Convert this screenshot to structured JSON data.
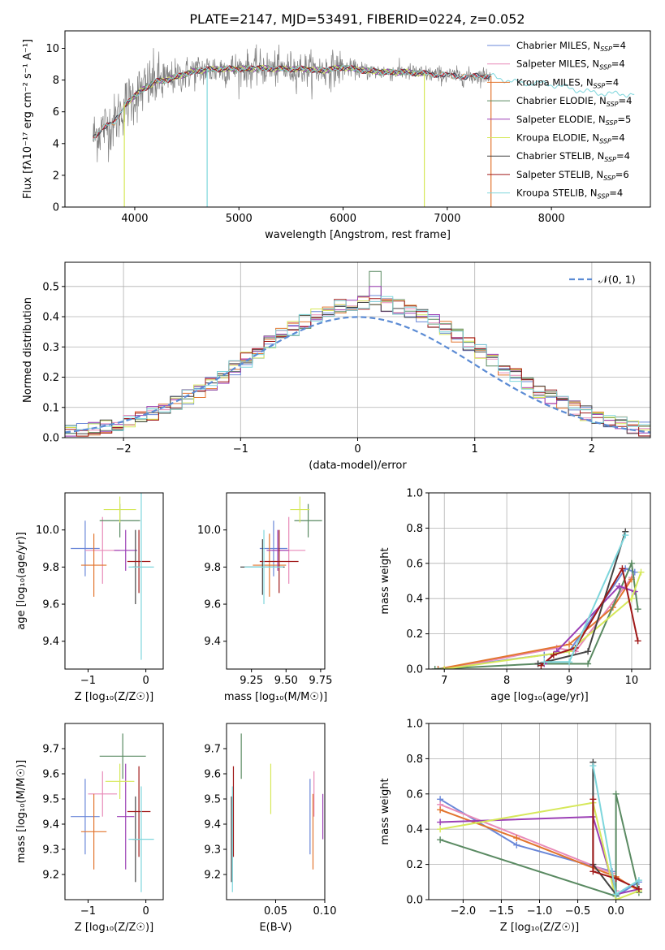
{
  "figure": {
    "title": "PLATE=2147, MJD=53491, FIBERID=0224, z=0.052"
  },
  "chart_data": [
    {
      "id": "spectrum",
      "type": "line",
      "xlabel": "wavelength [Angstrom, rest frame]",
      "ylabel": "Flux [fλ10⁻¹⁷ erg cm⁻² s⁻¹ A⁻¹]",
      "xlim": [
        3330,
        8950
      ],
      "ylim": [
        0,
        11.1
      ],
      "xticks": [
        4000,
        5000,
        6000,
        7000,
        8000
      ],
      "yticks": [
        0,
        2,
        4,
        6,
        8,
        10
      ],
      "grid": false,
      "legend_position": "top-right",
      "legend": [
        {
          "label": "Chabrier MILES, N",
          "sub": "SSP",
          "suffix": "=4",
          "color": "#6a87d8"
        },
        {
          "label": "Salpeter MILES, N",
          "sub": "SSP",
          "suffix": "=4",
          "color": "#e88ab8"
        },
        {
          "label": "Kroupa MILES, N",
          "sub": "SSP",
          "suffix": "=4",
          "color": "#e2752e"
        },
        {
          "label": "Chabrier ELODIE, N",
          "sub": "SSP",
          "suffix": "=4",
          "color": "#5a8a62"
        },
        {
          "label": "Salpeter ELODIE, N",
          "sub": "SSP",
          "suffix": "=5",
          "color": "#9b3fb5"
        },
        {
          "label": "Kroupa ELODIE, N",
          "sub": "SSP",
          "suffix": "=4",
          "color": "#d6e85a"
        },
        {
          "label": "Chabrier STELIB, N",
          "sub": "SSP",
          "suffix": "=4",
          "color": "#444444"
        },
        {
          "label": "Salpeter STELIB, N",
          "sub": "SSP",
          "suffix": "=6",
          "color": "#a01818"
        },
        {
          "label": "Kroupa STELIB, N",
          "sub": "SSP",
          "suffix": "=4",
          "color": "#7ed6dc"
        }
      ],
      "observed_color": "#808080",
      "continuum": {
        "x": [
          3600,
          3700,
          3800,
          3900,
          4000,
          4100,
          4200,
          4300,
          4400,
          4500,
          4600,
          4800,
          5000,
          5200,
          5400,
          5600,
          5800,
          6000,
          6200,
          6400,
          6600,
          6800,
          7000,
          7200,
          7400,
          7500,
          7700,
          7900,
          8100,
          8300,
          8500,
          8800
        ],
        "y": [
          4.4,
          5.0,
          5.3,
          6.4,
          7.0,
          7.5,
          7.9,
          8.0,
          8.2,
          8.4,
          8.6,
          8.7,
          8.7,
          8.75,
          8.7,
          8.7,
          8.6,
          8.8,
          8.6,
          8.5,
          8.5,
          8.4,
          8.3,
          8.2,
          8.3,
          8.1,
          7.8,
          7.8,
          7.6,
          7.3,
          7.15,
          7.1
        ]
      },
      "model_ranges": [
        {
          "color": "#6a87d8",
          "x0": 3600,
          "x1": 7420
        },
        {
          "color": "#e88ab8",
          "x0": 3600,
          "x1": 7420
        },
        {
          "color": "#e2752e",
          "x0": 3600,
          "x1": 7420
        },
        {
          "color": "#5a8a62",
          "x0": 3900,
          "x1": 6780
        },
        {
          "color": "#9b3fb5",
          "x0": 3900,
          "x1": 6780
        },
        {
          "color": "#d6e85a",
          "x0": 3900,
          "x1": 6780
        },
        {
          "color": "#444444",
          "x0": 3600,
          "x1": 7420
        },
        {
          "color": "#a01818",
          "x0": 3600,
          "x1": 7420
        },
        {
          "color": "#7ed6dc",
          "x0": 3600,
          "x1": 8800
        }
      ],
      "drop_lines": [
        {
          "x": 3900,
          "color": "#d6e85a"
        },
        {
          "x": 4695,
          "color": "#7ed6dc"
        },
        {
          "x": 6780,
          "color": "#d6e85a"
        },
        {
          "x": 7420,
          "color": "#e2752e"
        }
      ]
    },
    {
      "id": "residuals",
      "type": "step",
      "xlabel": "(data-model)/error",
      "ylabel": "Normed distribution",
      "xlim": [
        -2.5,
        2.5
      ],
      "ylim": [
        0,
        0.58
      ],
      "xticks": [
        -2,
        -1,
        0,
        1,
        2
      ],
      "yticks": [
        0.0,
        0.1,
        0.2,
        0.3,
        0.4,
        0.5
      ],
      "grid": true,
      "legend_position": "top-right",
      "legend": [
        {
          "label": "𝒩(0, 1)",
          "color": "#5b8bd4",
          "style": "dashed"
        }
      ],
      "bin_width": 0.1,
      "series_colors": [
        "#6a87d8",
        "#e88ab8",
        "#e2752e",
        "#5a8a62",
        "#9b3fb5",
        "#d6e85a",
        "#444444",
        "#a01818",
        "#7ed6dc"
      ],
      "peak_values": [
        0.47,
        0.45,
        0.44,
        0.55,
        0.5,
        0.44,
        0.44,
        0.46,
        0.45
      ]
    },
    {
      "id": "age_vs_Z",
      "type": "errorbar",
      "xlabel": "Z [log₁₀(Z/Z☉)]",
      "ylabel": "age  [log₁₀(age/yr)]",
      "xlim": [
        -1.4,
        0.3
      ],
      "ylim": [
        9.25,
        10.2
      ],
      "xticks": [
        -1,
        0
      ],
      "yticks": [
        9.4,
        9.6,
        9.8,
        10.0
      ],
      "grid": false,
      "points": [
        {
          "color": "#6a87d8",
          "x": -1.05,
          "xerr": 0.25,
          "y": 9.9,
          "yerr": 0.15
        },
        {
          "color": "#e88ab8",
          "x": -0.75,
          "xerr": 0.3,
          "y": 9.89,
          "yerr": 0.18
        },
        {
          "color": "#e2752e",
          "x": -0.9,
          "xerr": 0.22,
          "y": 9.81,
          "yerr": 0.17
        },
        {
          "color": "#5a8a62",
          "x": -0.45,
          "xerr": 0.35,
          "y": 10.05,
          "yerr": 0.09
        },
        {
          "color": "#9b3fb5",
          "x": -0.35,
          "xerr": 0.2,
          "y": 9.89,
          "yerr": 0.11
        },
        {
          "color": "#d6e85a",
          "x": -0.45,
          "xerr": 0.28,
          "y": 10.11,
          "yerr": 0.07
        },
        {
          "color": "#444444",
          "x": -0.18,
          "xerr": 0.05,
          "y": 9.8,
          "yerr": 0.2
        },
        {
          "color": "#a01818",
          "x": -0.12,
          "xerr": 0.2,
          "y": 9.83,
          "yerr": 0.17
        },
        {
          "color": "#7ed6dc",
          "x": -0.08,
          "xerr": 0.22,
          "y": 9.8,
          "yerr": 0.5
        }
      ]
    },
    {
      "id": "age_vs_mass",
      "type": "errorbar",
      "xlabel": "mass [log₁₀(M/M☉)]",
      "ylabel": "",
      "xlim": [
        9.07,
        9.78
      ],
      "ylim": [
        9.25,
        10.2
      ],
      "xticks": [
        9.25,
        9.5,
        9.75
      ],
      "yticks": [
        9.4,
        9.6,
        9.8,
        10.0
      ],
      "grid": false,
      "points": [
        {
          "color": "#6a87d8",
          "x": 9.41,
          "xerr": 0.1,
          "y": 9.9,
          "yerr": 0.15
        },
        {
          "color": "#e88ab8",
          "x": 9.52,
          "xerr": 0.12,
          "y": 9.89,
          "yerr": 0.18
        },
        {
          "color": "#e2752e",
          "x": 9.38,
          "xerr": 0.12,
          "y": 9.81,
          "yerr": 0.17
        },
        {
          "color": "#5a8a62",
          "x": 9.66,
          "xerr": 0.1,
          "y": 10.05,
          "yerr": 0.09
        },
        {
          "color": "#9b3fb5",
          "x": 9.44,
          "xerr": 0.08,
          "y": 9.89,
          "yerr": 0.11
        },
        {
          "color": "#d6e85a",
          "x": 9.6,
          "xerr": 0.07,
          "y": 10.11,
          "yerr": 0.07
        },
        {
          "color": "#444444",
          "x": 9.33,
          "xerr": 0.16,
          "y": 9.8,
          "yerr": 0.15
        },
        {
          "color": "#a01818",
          "x": 9.45,
          "xerr": 0.14,
          "y": 9.83,
          "yerr": 0.17
        },
        {
          "color": "#7ed6dc",
          "x": 9.34,
          "xerr": 0.14,
          "y": 9.8,
          "yerr": 0.2
        }
      ]
    },
    {
      "id": "mass_weight_vs_age",
      "type": "line",
      "xlabel": "age  [log₁₀(age/yr)]",
      "ylabel": "mass weight",
      "xlim": [
        6.75,
        10.3
      ],
      "ylim": [
        0,
        1.0
      ],
      "xticks": [
        7,
        8,
        9,
        10
      ],
      "yticks": [
        0.0,
        0.2,
        0.4,
        0.6,
        0.8,
        1.0
      ],
      "grid": true,
      "series": [
        {
          "color": "#6a87d8",
          "x": [
            6.9,
            8.6,
            9.0,
            9.9,
            10.05
          ],
          "y": [
            0.0,
            0.08,
            0.1,
            0.57,
            0.55
          ]
        },
        {
          "color": "#e88ab8",
          "x": [
            7.0,
            8.8,
            9.1,
            10.0
          ],
          "y": [
            0.0,
            0.12,
            0.1,
            0.52
          ]
        },
        {
          "color": "#e2752e",
          "x": [
            6.9,
            9.0,
            9.7,
            10.0
          ],
          "y": [
            0.0,
            0.14,
            0.35,
            0.51
          ]
        },
        {
          "color": "#5a8a62",
          "x": [
            6.85,
            8.5,
            9.3,
            10.0,
            10.1
          ],
          "y": [
            0.0,
            0.03,
            0.03,
            0.6,
            0.34
          ]
        },
        {
          "color": "#9b3fb5",
          "x": [
            8.6,
            8.8,
            9.8,
            10.05
          ],
          "y": [
            0.03,
            0.1,
            0.47,
            0.44
          ]
        },
        {
          "color": "#d6e85a",
          "x": [
            7.0,
            9.0,
            10.0,
            10.15
          ],
          "y": [
            0.0,
            0.1,
            0.4,
            0.55
          ]
        },
        {
          "color": "#444444",
          "x": [
            8.5,
            9.3,
            9.9
          ],
          "y": [
            0.03,
            0.1,
            0.78
          ]
        },
        {
          "color": "#a01818",
          "x": [
            8.55,
            8.75,
            9.1,
            9.85,
            10.1
          ],
          "y": [
            0.02,
            0.08,
            0.12,
            0.57,
            0.16
          ]
        },
        {
          "color": "#7ed6dc",
          "x": [
            8.6,
            9.0,
            9.9
          ],
          "y": [
            0.04,
            0.04,
            0.76
          ]
        }
      ]
    },
    {
      "id": "mass_vs_Z",
      "type": "errorbar",
      "xlabel": "Z [log₁₀(Z/Z☉)]",
      "ylabel": "mass [log₁₀(M/M☉)]",
      "xlim": [
        -1.4,
        0.3
      ],
      "ylim": [
        9.1,
        9.8
      ],
      "xticks": [
        -1,
        0
      ],
      "yticks": [
        9.2,
        9.3,
        9.4,
        9.5,
        9.6,
        9.7
      ],
      "grid": false,
      "points": [
        {
          "color": "#6a87d8",
          "x": -1.05,
          "xerr": 0.25,
          "y": 9.43,
          "yerr": 0.15
        },
        {
          "color": "#e88ab8",
          "x": -0.75,
          "xerr": 0.25,
          "y": 9.52,
          "yerr": 0.09
        },
        {
          "color": "#e2752e",
          "x": -0.9,
          "xerr": 0.22,
          "y": 9.37,
          "yerr": 0.15
        },
        {
          "color": "#5a8a62",
          "x": -0.4,
          "xerr": 0.4,
          "y": 9.67,
          "yerr": 0.09
        },
        {
          "color": "#9b3fb5",
          "x": -0.35,
          "xerr": 0.15,
          "y": 9.43,
          "yerr": 0.21
        },
        {
          "color": "#d6e85a",
          "x": -0.45,
          "xerr": 0.25,
          "y": 9.57,
          "yerr": 0.07
        },
        {
          "color": "#444444",
          "x": -0.18,
          "xerr": 0.05,
          "y": 9.34,
          "yerr": 0.17
        },
        {
          "color": "#a01818",
          "x": -0.12,
          "xerr": 0.2,
          "y": 9.45,
          "yerr": 0.18
        },
        {
          "color": "#7ed6dc",
          "x": -0.08,
          "xerr": 0.22,
          "y": 9.34,
          "yerr": 0.21
        }
      ]
    },
    {
      "id": "mass_vs_EBV",
      "type": "errorbar",
      "xlabel": "E(B-V)",
      "ylabel": "",
      "xlim": [
        0.0,
        0.1
      ],
      "ylim": [
        9.1,
        9.8
      ],
      "xticks": [
        0.05,
        0.1
      ],
      "yticks": [
        9.2,
        9.3,
        9.4,
        9.5,
        9.6,
        9.7
      ],
      "grid": false,
      "points": [
        {
          "color": "#6a87d8",
          "x": 0.085,
          "xerr": 0.0,
          "y": 9.43,
          "yerr": 0.15
        },
        {
          "color": "#e88ab8",
          "x": 0.089,
          "xerr": 0.0,
          "y": 9.52,
          "yerr": 0.09
        },
        {
          "color": "#e2752e",
          "x": 0.088,
          "xerr": 0.0,
          "y": 9.37,
          "yerr": 0.15
        },
        {
          "color": "#5a8a62",
          "x": 0.015,
          "xerr": 0.0,
          "y": 9.67,
          "yerr": 0.09
        },
        {
          "color": "#9b3fb5",
          "x": 0.098,
          "xerr": 0.0,
          "y": 9.43,
          "yerr": 0.09
        },
        {
          "color": "#d6e85a",
          "x": 0.045,
          "xerr": 0.0,
          "y": 9.54,
          "yerr": 0.1
        },
        {
          "color": "#444444",
          "x": 0.005,
          "xerr": 0.0,
          "y": 9.34,
          "yerr": 0.17
        },
        {
          "color": "#a01818",
          "x": 0.007,
          "xerr": 0.0,
          "y": 9.45,
          "yerr": 0.18
        },
        {
          "color": "#7ed6dc",
          "x": 0.006,
          "xerr": 0.0,
          "y": 9.34,
          "yerr": 0.21
        }
      ]
    },
    {
      "id": "mass_weight_vs_Z",
      "type": "line",
      "xlabel": "Z [log₁₀(Z/Z☉)]",
      "ylabel": "mass weight",
      "xlim": [
        -2.45,
        0.45
      ],
      "ylim": [
        0,
        1.0
      ],
      "xticks": [
        -2.0,
        -1.5,
        -1.0,
        -0.5,
        0.0
      ],
      "yticks": [
        0.0,
        0.2,
        0.4,
        0.6,
        0.8,
        1.0
      ],
      "grid": true,
      "series": [
        {
          "color": "#6a87d8",
          "x": [
            -2.3,
            -1.3,
            -0.05,
            0.0,
            0.3
          ],
          "y": [
            0.57,
            0.31,
            0.16,
            0.02,
            0.1
          ]
        },
        {
          "color": "#e88ab8",
          "x": [
            -2.3,
            -0.05,
            0.0
          ],
          "y": [
            0.54,
            0.15,
            0.05
          ]
        },
        {
          "color": "#e2752e",
          "x": [
            -2.3,
            -1.3,
            0.0,
            0.3
          ],
          "y": [
            0.51,
            0.35,
            0.13,
            0.05
          ]
        },
        {
          "color": "#5a8a62",
          "x": [
            -2.3,
            0.0,
            0.0,
            0.3
          ],
          "y": [
            0.34,
            0.02,
            0.6,
            0.04
          ]
        },
        {
          "color": "#9b3fb5",
          "x": [
            -2.3,
            -0.3,
            0.0,
            0.3
          ],
          "y": [
            0.44,
            0.47,
            0.03,
            0.06
          ]
        },
        {
          "color": "#d6e85a",
          "x": [
            -2.3,
            -0.3,
            0.0,
            0.3
          ],
          "y": [
            0.4,
            0.55,
            0.0,
            0.05
          ]
        },
        {
          "color": "#444444",
          "x": [
            -0.3,
            -0.3,
            0.0
          ],
          "y": [
            0.78,
            0.2,
            0.03
          ]
        },
        {
          "color": "#a01818",
          "x": [
            -0.3,
            -0.3,
            0.0,
            0.3
          ],
          "y": [
            0.57,
            0.16,
            0.12,
            0.06
          ]
        },
        {
          "color": "#7ed6dc",
          "x": [
            -0.3,
            0.0,
            0.3
          ],
          "y": [
            0.76,
            0.03,
            0.11
          ]
        }
      ]
    }
  ]
}
